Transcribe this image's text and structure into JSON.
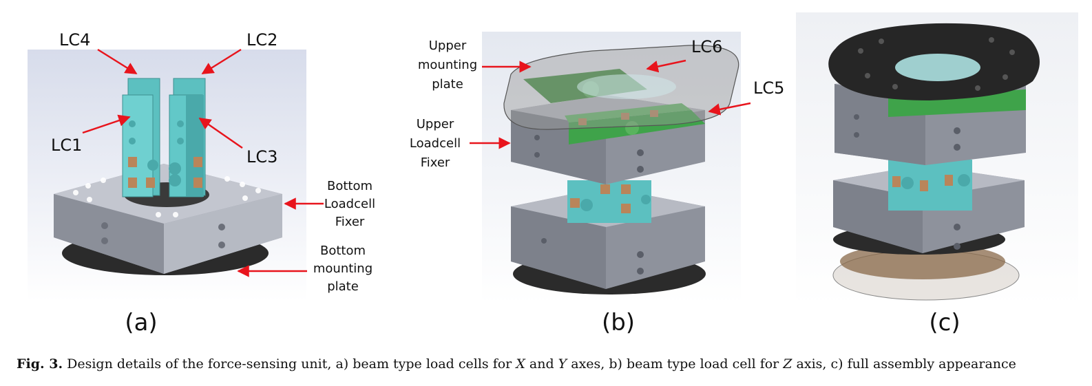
{
  "panels": {
    "a": {
      "label": "(a)",
      "callouts": {
        "lc4": "LC4",
        "lc2": "LC2",
        "lc1": "LC1",
        "lc3": "LC3",
        "bottom_fixer": [
          "Bottom",
          "Loadcell",
          "Fixer"
        ],
        "bottom_plate": [
          "Bottom",
          "mounting",
          "plate"
        ]
      }
    },
    "b": {
      "label": "(b)",
      "callouts": {
        "upper_plate": [
          "Upper",
          "mounting",
          "plate"
        ],
        "lc6": "LC6",
        "lc5": "LC5",
        "upper_fixer": [
          "Upper",
          "Loadcell",
          "Fixer"
        ]
      }
    },
    "c": {
      "label": "(c)"
    }
  },
  "caption": {
    "fig_id": "Fig. 3.",
    "text_1": "Design details of the force-sensing unit, a) beam type load cells for ",
    "x": "X",
    "and": " and ",
    "y": "Y",
    "text_2": " axes, b) beam type load cell for ",
    "z": "Z",
    "text_3": " axis, c) full assembly appearance"
  },
  "colors": {
    "arrow": "#e8141c",
    "loadcell_teal": "#5cc0c0",
    "loadcell_green": "#3fa34a",
    "fixer_grey": "#8e929c",
    "plate_dark": "#2b2b2b",
    "plate_brown": "#8a6a4a",
    "background_tint": "#e6eaf2"
  }
}
